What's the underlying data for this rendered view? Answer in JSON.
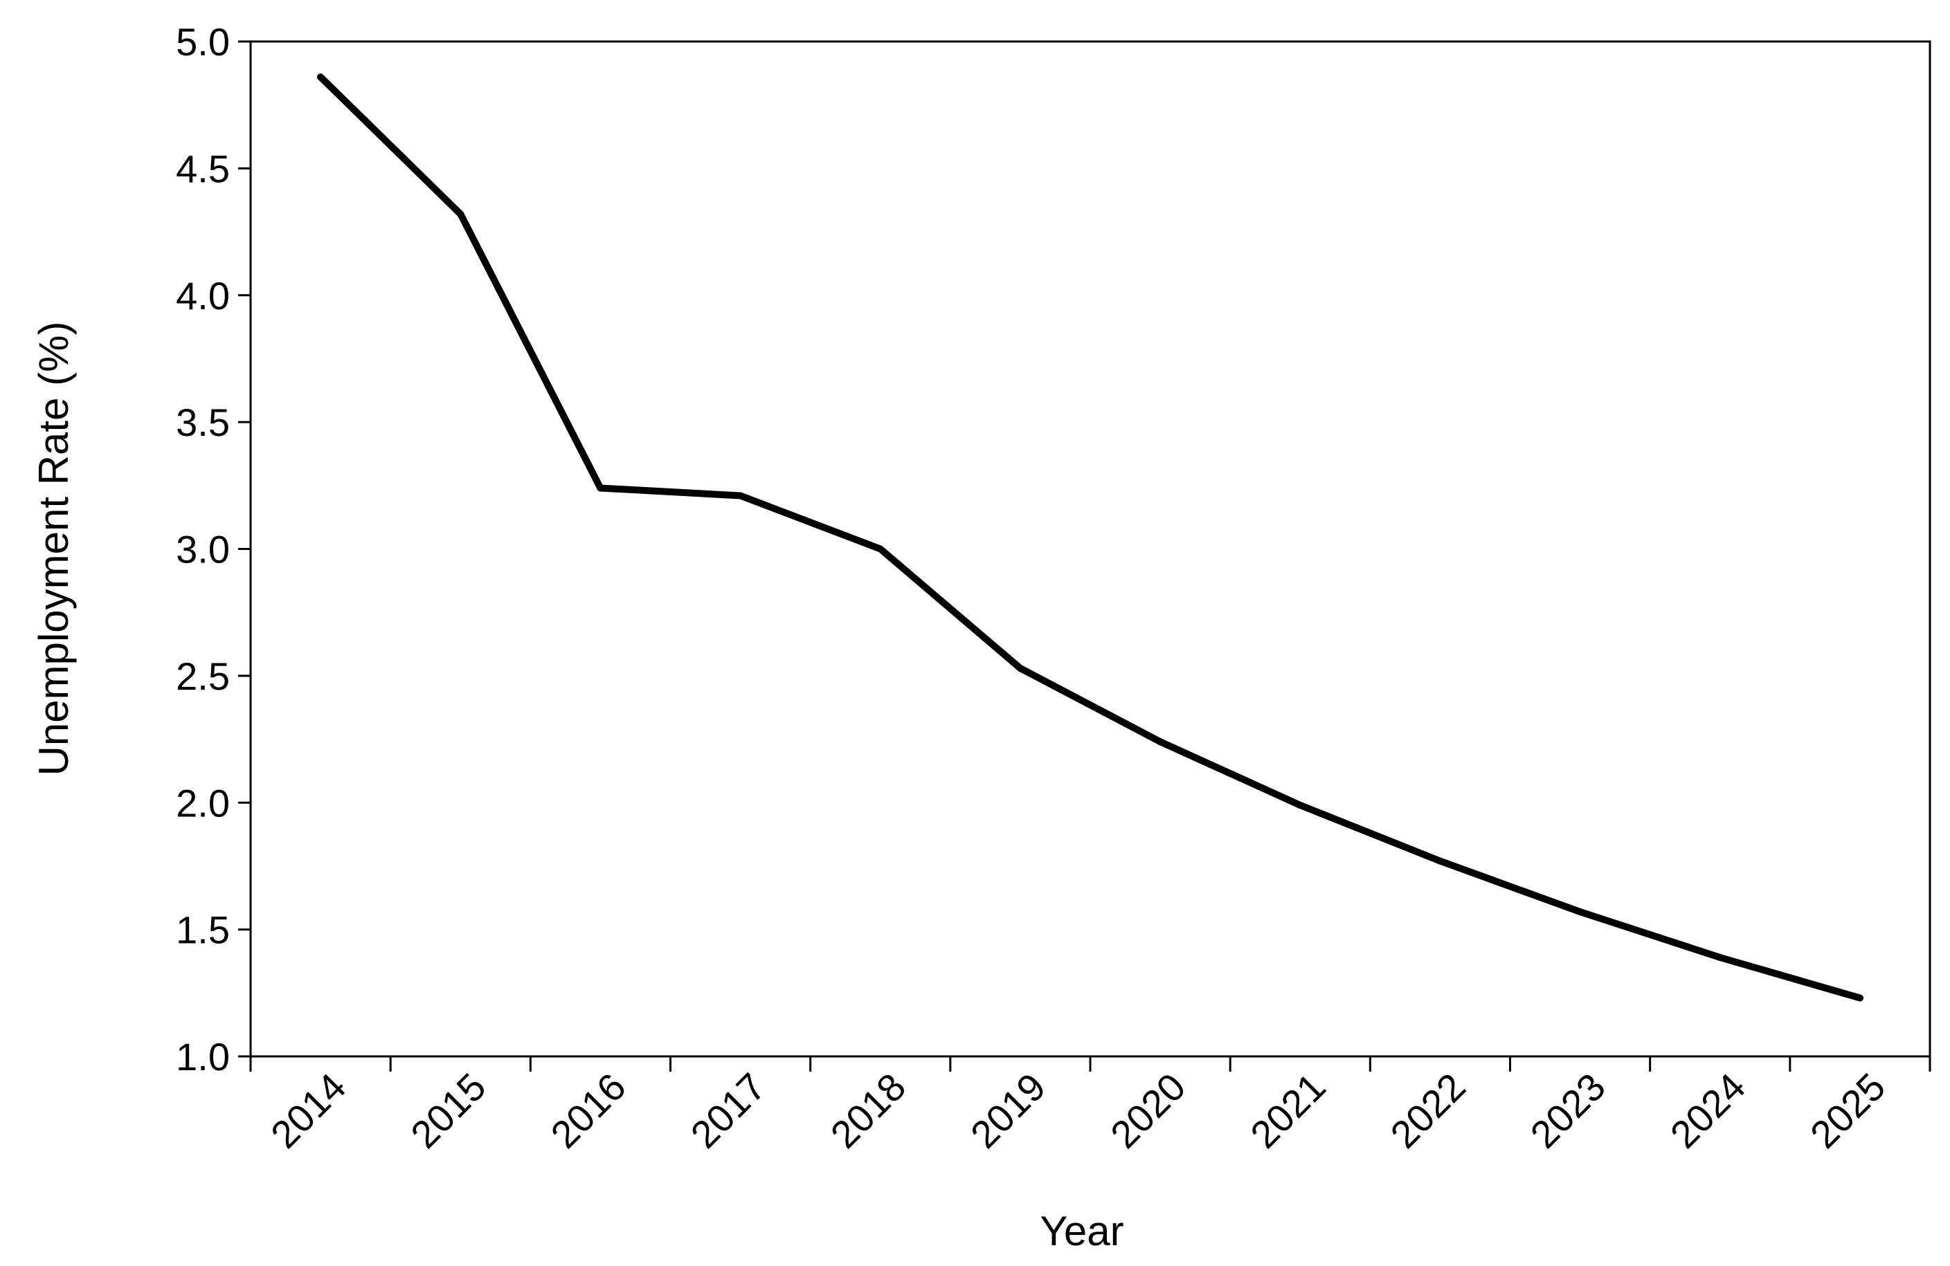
{
  "chart_data": {
    "type": "line",
    "title": "",
    "xlabel": "Year",
    "ylabel": "Unemployment Rate (%)",
    "categories": [
      "2014",
      "2015",
      "2016",
      "2017",
      "2018",
      "2019",
      "2020",
      "2021",
      "2022",
      "2023",
      "2024",
      "2025"
    ],
    "x": [
      2014,
      2015,
      2016,
      2017,
      2018,
      2019,
      2020,
      2021,
      2022,
      2023,
      2024,
      2025
    ],
    "series": [
      {
        "values": [
          4.86,
          4.32,
          3.24,
          3.21,
          3.0,
          2.53,
          2.24,
          1.99,
          1.77,
          1.57,
          1.39,
          1.23
        ]
      }
    ],
    "ylim": [
      1.0,
      5.0
    ],
    "yticks": [
      "1.0",
      "1.5",
      "2.0",
      "2.5",
      "3.0",
      "3.5",
      "4.0",
      "4.5",
      "5.0"
    ],
    "grid": false,
    "legend": "none",
    "line_color": "#000000"
  }
}
